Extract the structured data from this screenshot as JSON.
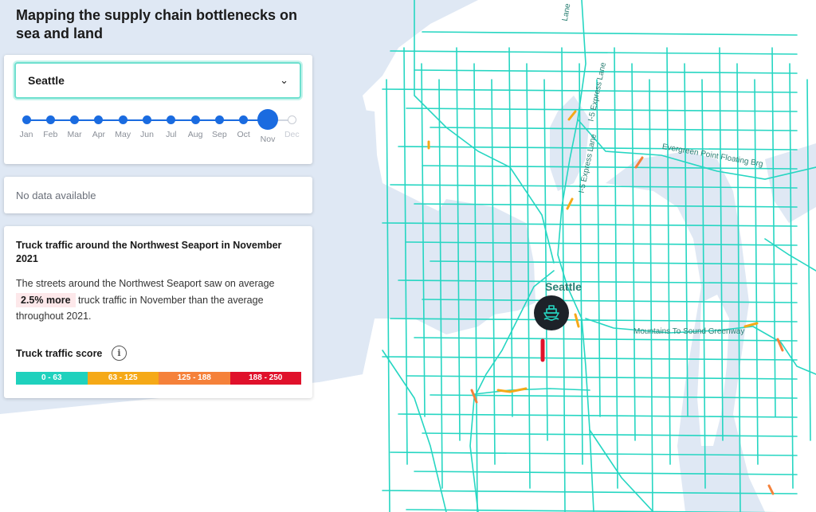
{
  "title": "Mapping the supply chain bottlenecks on sea and land",
  "selector": {
    "value": "Seattle"
  },
  "timeline": {
    "months": [
      "Jan",
      "Feb",
      "Mar",
      "Apr",
      "May",
      "Jun",
      "Jul",
      "Aug",
      "Sep",
      "Oct",
      "Nov",
      "Dec"
    ],
    "selected": "Nov",
    "unavailable": [
      "Dec"
    ]
  },
  "nodata": "No data available",
  "info": {
    "title": "Truck traffic around the Northwest Seaport in November 2021",
    "body_prefix": "The streets around the Northwest Seaport saw on average",
    "highlight": "2.5% more",
    "body_suffix": "truck traffic in November than the average throughout 2021."
  },
  "score": {
    "label": "Truck traffic score",
    "info_glyph": "i",
    "ranges": [
      {
        "label": "0 - 63",
        "color": "#1fd1bd"
      },
      {
        "label": "63 - 125",
        "color": "#f5a917"
      },
      {
        "label": "125 - 188",
        "color": "#f5813a"
      },
      {
        "label": "188 - 250",
        "color": "#e0112b"
      }
    ]
  },
  "map": {
    "city_label": "Seattle",
    "road_labels": [
      "Evergreen Point Floating Brg",
      "Mountains To Sound Greenway",
      "I-5 Express Lane",
      "I-5 Express Lane",
      "Lane"
    ],
    "road_color": "#26d6c2",
    "water_color": "#dfe8f4",
    "land_color": "#ffffff",
    "port_icon": "ship-icon"
  }
}
